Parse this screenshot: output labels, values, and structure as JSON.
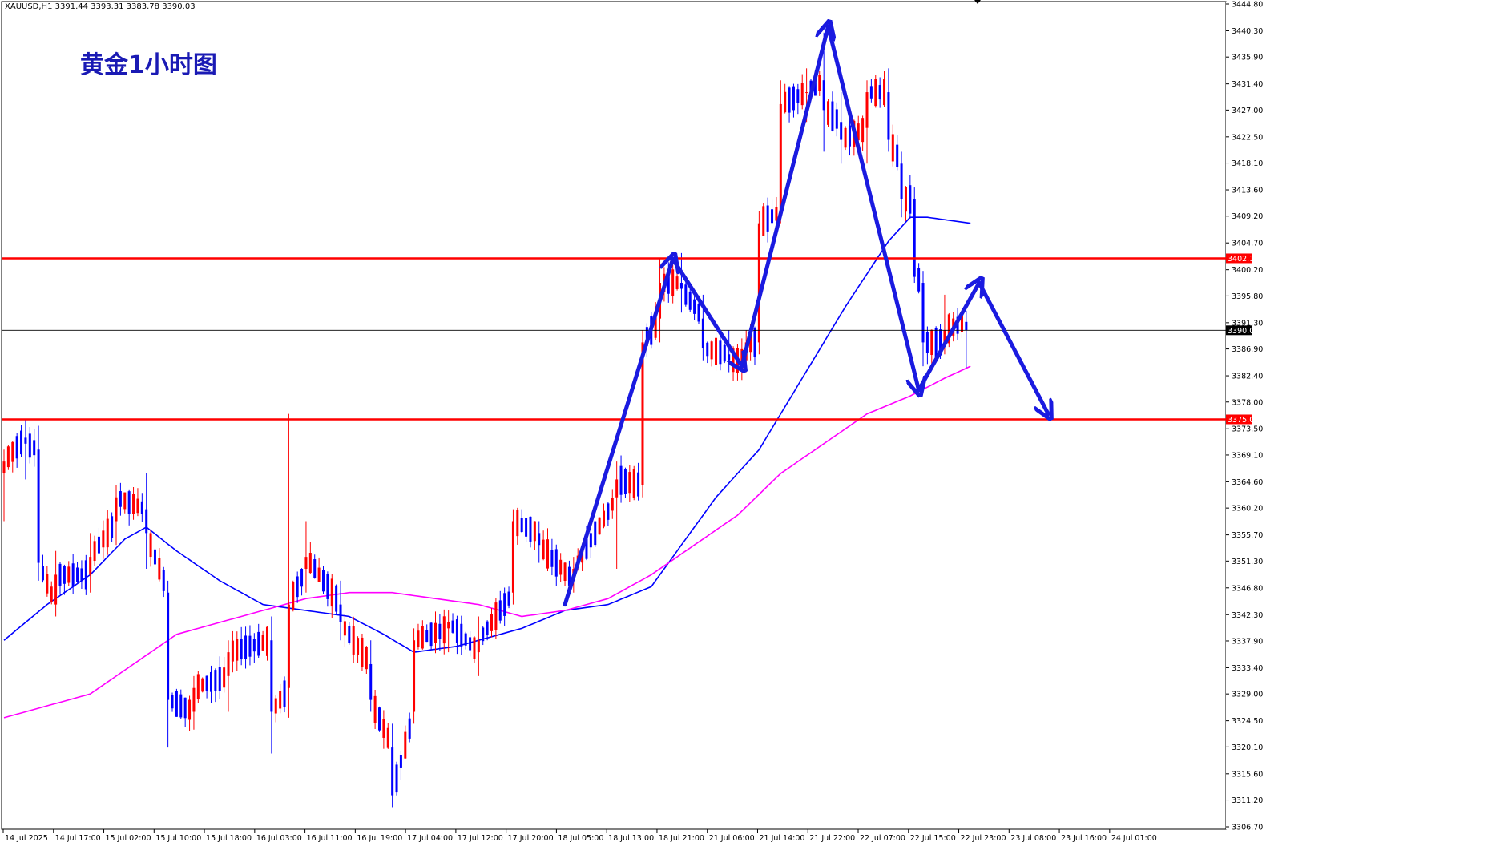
{
  "window": {
    "symbol_line": "XAUUSD,H1  3391.44 3393.31 3383.78 3390.03"
  },
  "colors": {
    "background": "#ffffff",
    "bull_candle": "#ff0000",
    "bear_candle": "#0000ff",
    "ma_short": "#0000ff",
    "ma_long": "#ff00ff",
    "hline": "#ff0000",
    "current_line": "#000000",
    "arrow": "#1a1ae0",
    "title": "#1a1ab4"
  },
  "chart_data": {
    "type": "candlestick",
    "title": "黄金1小时图",
    "symbol": "XAUUSD",
    "timeframe": "H1",
    "ohlc_header": {
      "open": 3391.44,
      "high": 3393.31,
      "low": 3383.78,
      "close": 3390.03
    },
    "ylim": [
      3306.7,
      3444.8
    ],
    "y_ticks": [
      "3444.80",
      "3440.30",
      "3435.90",
      "3431.40",
      "3427.00",
      "3422.50",
      "3418.10",
      "3413.60",
      "3409.20",
      "3404.70",
      "3400.20",
      "3395.80",
      "3391.30",
      "3386.90",
      "3382.40",
      "3378.00",
      "3373.50",
      "3369.10",
      "3364.60",
      "3360.20",
      "3355.70",
      "3351.30",
      "3346.80",
      "3342.30",
      "3337.90",
      "3333.40",
      "3329.00",
      "3324.50",
      "3320.10",
      "3315.60",
      "3311.20",
      "3306.70"
    ],
    "x_ticks": [
      "14 Jul 2025",
      "14 Jul 17:00",
      "15 Jul 02:00",
      "15 Jul 10:00",
      "15 Jul 18:00",
      "16 Jul 03:00",
      "16 Jul 11:00",
      "16 Jul 19:00",
      "17 Jul 04:00",
      "17 Jul 12:00",
      "17 Jul 20:00",
      "18 Jul 05:00",
      "18 Jul 13:00",
      "18 Jul 21:00",
      "21 Jul 06:00",
      "21 Jul 14:00",
      "21 Jul 22:00",
      "22 Jul 07:00",
      "22 Jul 15:00",
      "22 Jul 23:00",
      "23 Jul 08:00",
      "23 Jul 16:00",
      "24 Jul 01:00"
    ],
    "horizontal_lines": [
      {
        "label": "3402.11",
        "value": 3402.11
      },
      {
        "label": "3375.08",
        "value": 3375.08
      }
    ],
    "current_price": {
      "label": "3390.03",
      "value": 3390.03
    },
    "anchor_candles": [
      {
        "idx": 0,
        "o": 3366,
        "h": 3370,
        "l": 3358,
        "c": 3368
      },
      {
        "idx": 5,
        "o": 3372,
        "h": 3375,
        "l": 3365,
        "c": 3371
      },
      {
        "idx": 8,
        "o": 3370,
        "h": 3374,
        "l": 3348,
        "c": 3351
      },
      {
        "idx": 12,
        "o": 3344,
        "h": 3353,
        "l": 3342,
        "c": 3349
      },
      {
        "idx": 20,
        "o": 3349,
        "h": 3356,
        "l": 3346,
        "c": 3352
      },
      {
        "idx": 26,
        "o": 3358,
        "h": 3364,
        "l": 3354,
        "c": 3362
      },
      {
        "idx": 33,
        "o": 3360,
        "h": 3366,
        "l": 3350,
        "c": 3356
      },
      {
        "idx": 38,
        "o": 3346,
        "h": 3348,
        "l": 3320,
        "c": 3328
      },
      {
        "idx": 44,
        "o": 3326,
        "h": 3332,
        "l": 3323,
        "c": 3330
      },
      {
        "idx": 52,
        "o": 3332,
        "h": 3338,
        "l": 3326,
        "c": 3336
      },
      {
        "idx": 62,
        "o": 3338,
        "h": 3342,
        "l": 3319,
        "c": 3326
      },
      {
        "idx": 66,
        "o": 3330,
        "h": 3376,
        "l": 3325,
        "c": 3344
      },
      {
        "idx": 70,
        "o": 3350,
        "h": 3358,
        "l": 3346,
        "c": 3352
      },
      {
        "idx": 78,
        "o": 3344,
        "h": 3348,
        "l": 3338,
        "c": 3341
      },
      {
        "idx": 85,
        "o": 3334,
        "h": 3338,
        "l": 3326,
        "c": 3328
      },
      {
        "idx": 90,
        "o": 3320,
        "h": 3324,
        "l": 3310,
        "c": 3312
      },
      {
        "idx": 95,
        "o": 3326,
        "h": 3340,
        "l": 3324,
        "c": 3338
      },
      {
        "idx": 103,
        "o": 3340,
        "h": 3343,
        "l": 3336,
        "c": 3341
      },
      {
        "idx": 110,
        "o": 3336,
        "h": 3342,
        "l": 3332,
        "c": 3338
      },
      {
        "idx": 118,
        "o": 3346,
        "h": 3360,
        "l": 3344,
        "c": 3358
      },
      {
        "idx": 124,
        "o": 3356,
        "h": 3358,
        "l": 3351,
        "c": 3354
      },
      {
        "idx": 132,
        "o": 3348,
        "h": 3352,
        "l": 3346,
        "c": 3350
      },
      {
        "idx": 142,
        "o": 3362,
        "h": 3368,
        "l": 3350,
        "c": 3365
      },
      {
        "idx": 148,
        "o": 3364,
        "h": 3390,
        "l": 3362,
        "c": 3388
      },
      {
        "idx": 152,
        "o": 3392,
        "h": 3402,
        "l": 3388,
        "c": 3398
      },
      {
        "idx": 157,
        "o": 3398,
        "h": 3403,
        "l": 3393,
        "c": 3397
      },
      {
        "idx": 162,
        "o": 3392,
        "h": 3396,
        "l": 3385,
        "c": 3387
      },
      {
        "idx": 168,
        "o": 3386,
        "h": 3390,
        "l": 3383,
        "c": 3385
      },
      {
        "idx": 172,
        "o": 3385,
        "h": 3390,
        "l": 3383,
        "c": 3388
      },
      {
        "idx": 175,
        "o": 3388,
        "h": 3410,
        "l": 3386,
        "c": 3408
      },
      {
        "idx": 180,
        "o": 3410,
        "h": 3432,
        "l": 3408,
        "c": 3428
      },
      {
        "idx": 186,
        "o": 3430,
        "h": 3434,
        "l": 3425,
        "c": 3430
      },
      {
        "idx": 190,
        "o": 3432,
        "h": 3440,
        "l": 3420,
        "c": 3427
      },
      {
        "idx": 194,
        "o": 3425,
        "h": 3430,
        "l": 3418,
        "c": 3422
      },
      {
        "idx": 200,
        "o": 3424,
        "h": 3432,
        "l": 3418,
        "c": 3430
      },
      {
        "idx": 205,
        "o": 3430,
        "h": 3434,
        "l": 3420,
        "c": 3422
      },
      {
        "idx": 208,
        "o": 3418,
        "h": 3420,
        "l": 3409,
        "c": 3412
      },
      {
        "idx": 211,
        "o": 3412,
        "h": 3414,
        "l": 3398,
        "c": 3399
      },
      {
        "idx": 213,
        "o": 3398,
        "h": 3400,
        "l": 3384,
        "c": 3388
      },
      {
        "idx": 218,
        "o": 3388,
        "h": 3396,
        "l": 3386,
        "c": 3390
      },
      {
        "idx": 223,
        "o": 3391.44,
        "h": 3393.31,
        "l": 3383.78,
        "c": 3390.03
      }
    ],
    "ma_short_anchors": [
      [
        0,
        3338
      ],
      [
        10,
        3344
      ],
      [
        20,
        3349
      ],
      [
        28,
        3355
      ],
      [
        33,
        3357
      ],
      [
        40,
        3353
      ],
      [
        50,
        3348
      ],
      [
        60,
        3344
      ],
      [
        70,
        3343
      ],
      [
        80,
        3342
      ],
      [
        88,
        3339
      ],
      [
        95,
        3336
      ],
      [
        105,
        3337
      ],
      [
        120,
        3340
      ],
      [
        130,
        3343
      ],
      [
        140,
        3344
      ],
      [
        150,
        3347
      ],
      [
        158,
        3355
      ],
      [
        165,
        3362
      ],
      [
        175,
        3370
      ],
      [
        185,
        3382
      ],
      [
        195,
        3394
      ],
      [
        205,
        3405
      ],
      [
        210,
        3409
      ],
      [
        214,
        3409
      ],
      [
        224,
        3408
      ]
    ],
    "ma_long_anchors": [
      [
        0,
        3325
      ],
      [
        10,
        3327
      ],
      [
        20,
        3329
      ],
      [
        30,
        3334
      ],
      [
        40,
        3339
      ],
      [
        50,
        3341
      ],
      [
        60,
        3343
      ],
      [
        70,
        3345
      ],
      [
        80,
        3346
      ],
      [
        90,
        3346
      ],
      [
        100,
        3345
      ],
      [
        110,
        3344
      ],
      [
        120,
        3342
      ],
      [
        130,
        3343
      ],
      [
        140,
        3345
      ],
      [
        150,
        3349
      ],
      [
        160,
        3354
      ],
      [
        170,
        3359
      ],
      [
        180,
        3366
      ],
      [
        190,
        3371
      ],
      [
        200,
        3376
      ],
      [
        210,
        3379
      ],
      [
        218,
        3382
      ],
      [
        224,
        3384
      ]
    ],
    "annotation_arrows": [
      {
        "from": [
          130,
          3344
        ],
        "to": [
          155,
          3402
        ]
      },
      {
        "from": [
          155,
          3402
        ],
        "to": [
          171,
          3384
        ]
      },
      {
        "from": [
          171,
          3384
        ],
        "to": [
          191,
          3441
        ]
      },
      {
        "from": [
          191,
          3441
        ],
        "to": [
          212,
          3380
        ]
      },
      {
        "from": [
          212,
          3380
        ],
        "to": [
          226,
          3398
        ]
      },
      {
        "from": [
          226,
          3398
        ],
        "to": [
          242,
          3376
        ]
      }
    ]
  }
}
